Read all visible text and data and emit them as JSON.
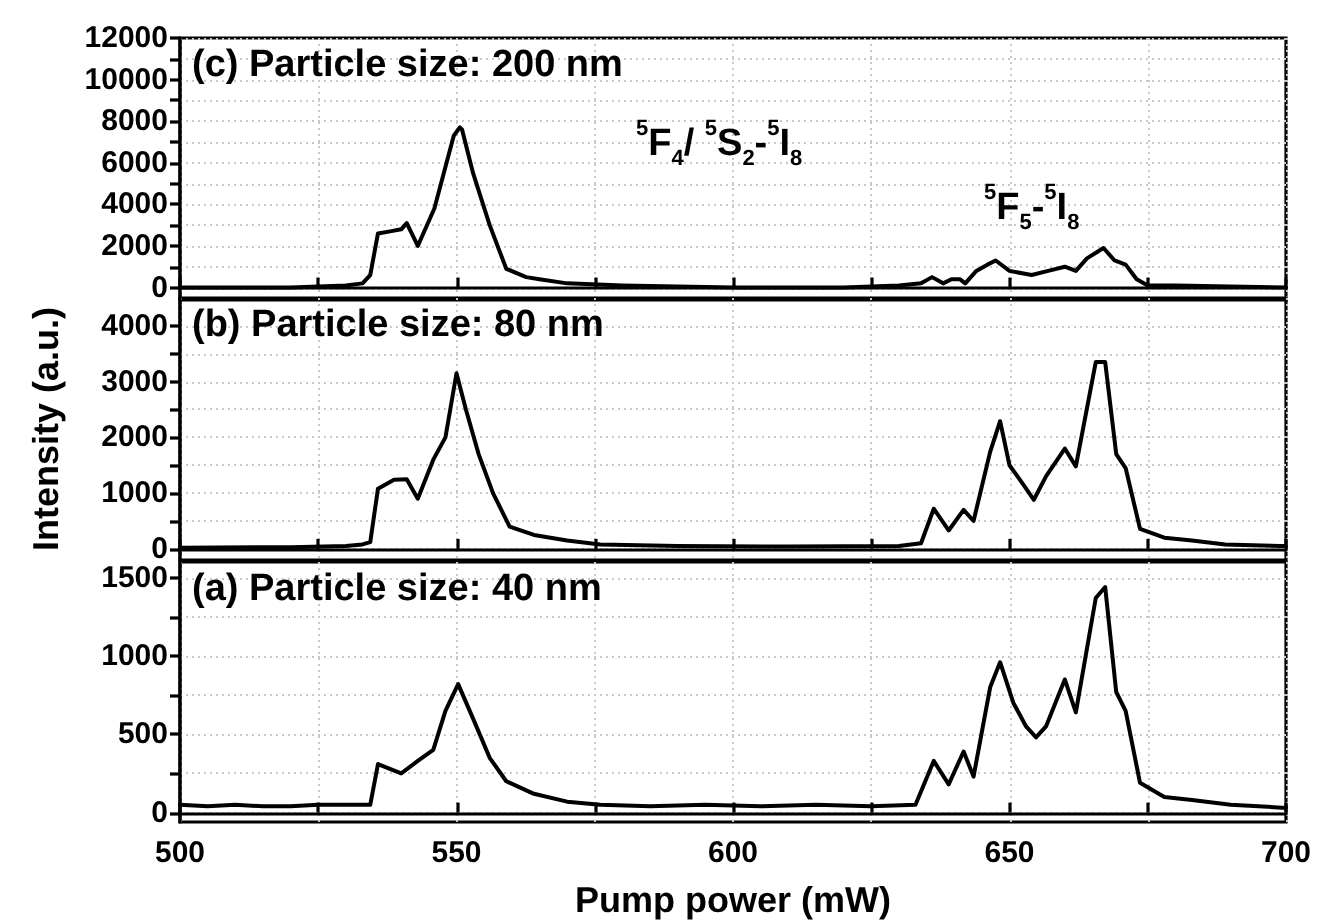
{
  "chart_data": [
    {
      "type": "line",
      "annotations": [
        "(c) Particle size: 200 nm",
        "$^{5}$F$_{4}$/ $^{5}$S$_{2}$-$^{5}$I$_{8}$",
        "$^{5}$F$_{5}$-$^{5}$I$_{8}$"
      ],
      "x": [
        500,
        520,
        530,
        533,
        534.4,
        535.8,
        538,
        540,
        541,
        543,
        546,
        549.5,
        550.6,
        551,
        553,
        556,
        559,
        562.6,
        565,
        570,
        580,
        600,
        620,
        630,
        634,
        636,
        638,
        639.5,
        641,
        642,
        644,
        646,
        647.5,
        650,
        654,
        657,
        660,
        662,
        664,
        667,
        669,
        671,
        673,
        675,
        680,
        700
      ],
      "series": [
        {
          "color": "#000000",
          "values": [
            0,
            0,
            100,
            200,
            600,
            2600,
            2700,
            2800,
            3100,
            2000,
            3800,
            7300,
            7700,
            7600,
            5500,
            3000,
            900,
            500,
            400,
            200,
            100,
            0,
            0,
            100,
            200,
            500,
            200,
            400,
            400,
            200,
            800,
            1100,
            1300,
            800,
            600,
            800,
            1000,
            800,
            1400,
            1900,
            1300,
            1100,
            400,
            100,
            100,
            0
          ]
        }
      ],
      "xlim": [
        500,
        700
      ],
      "xticks": [
        {
          "value": 500,
          "label": null
        },
        {
          "value": 525,
          "label": null
        },
        {
          "value": 550,
          "label": null
        },
        {
          "value": 575,
          "label": null
        },
        {
          "value": 600,
          "label": null
        },
        {
          "value": 625,
          "label": null
        },
        {
          "value": 650,
          "label": null
        },
        {
          "value": 675,
          "label": null
        },
        {
          "value": 700,
          "label": null
        }
      ],
      "ylim": [
        -600,
        12000
      ],
      "yticks": [
        0,
        {
          "value": 1000,
          "label": null
        },
        2000,
        {
          "value": 3000,
          "label": null
        },
        4000,
        {
          "value": 5000,
          "label": null
        },
        6000,
        {
          "value": 7000,
          "label": null
        },
        8000,
        {
          "value": 9000,
          "label": null
        },
        10000,
        {
          "value": 11000,
          "label": null
        },
        12000
      ],
      "grid": true,
      "tick_labels": "y"
    },
    {
      "type": "line",
      "ylabel": "Intensity (a.u.)",
      "annotations": [
        "(b) Particle size: 80 nm"
      ],
      "x": [
        500,
        520,
        530,
        533,
        534.4,
        535.8,
        538.7,
        541,
        543,
        545.8,
        548,
        550,
        551.7,
        554,
        556.6,
        559.6,
        564,
        570,
        576,
        590,
        610,
        630,
        634,
        636.3,
        639,
        641.7,
        643.5,
        646.5,
        648.3,
        650,
        652.6,
        654.4,
        656.6,
        660,
        662,
        665.6,
        667.3,
        669.3,
        671,
        673.6,
        678,
        683,
        689,
        699,
        700
      ],
      "series": [
        {
          "color": "#000000",
          "values": [
            20,
            30,
            50,
            80,
            120,
            1080,
            1240,
            1250,
            900,
            1600,
            2000,
            3150,
            2500,
            1700,
            1000,
            400,
            250,
            150,
            80,
            50,
            40,
            50,
            100,
            720,
            330,
            700,
            500,
            1740,
            2290,
            1500,
            1140,
            880,
            1300,
            1800,
            1480,
            3350,
            3350,
            1700,
            1450,
            360,
            200,
            150,
            80,
            50,
            50
          ]
        }
      ],
      "xlim": [
        500,
        700
      ],
      "xticks": [
        {
          "value": 500,
          "label": null
        },
        {
          "value": 525,
          "label": null
        },
        {
          "value": 550,
          "label": null
        },
        {
          "value": 575,
          "label": null
        },
        {
          "value": 600,
          "label": null
        },
        {
          "value": 625,
          "label": null
        },
        {
          "value": 650,
          "label": null
        },
        {
          "value": 675,
          "label": null
        },
        {
          "value": 700,
          "label": null
        }
      ],
      "ylim": [
        -200,
        4500
      ],
      "yticks": [
        0,
        {
          "value": 500,
          "label": null
        },
        1000,
        {
          "value": 1500,
          "label": null
        },
        2000,
        {
          "value": 2500,
          "label": null
        },
        3000,
        {
          "value": 3500,
          "label": null
        },
        4000
      ],
      "grid": true,
      "tick_labels": "y"
    },
    {
      "type": "line",
      "xlabel": "Pump power (mW)",
      "annotations": [
        "(a) Particle size: 40 nm"
      ],
      "x": [
        500,
        505,
        510,
        515,
        520,
        525,
        530,
        534.4,
        535.8,
        540,
        543,
        545.8,
        548,
        550.3,
        553,
        556,
        559,
        564,
        570,
        576,
        585,
        595,
        605,
        615,
        625,
        633,
        636.3,
        639,
        641.7,
        643.5,
        646.5,
        648.3,
        650.7,
        653,
        654.8,
        656.6,
        660,
        662,
        665.6,
        667.3,
        669.3,
        671,
        673.6,
        678,
        683,
        690,
        695,
        700
      ],
      "series": [
        {
          "color": "#000000",
          "values": [
            50,
            40,
            50,
            40,
            40,
            50,
            50,
            50,
            310,
            250,
            330,
            400,
            650,
            820,
            600,
            350,
            200,
            120,
            70,
            50,
            40,
            50,
            40,
            50,
            40,
            50,
            330,
            180,
            390,
            230,
            800,
            960,
            700,
            550,
            480,
            550,
            850,
            640,
            1370,
            1440,
            770,
            650,
            190,
            100,
            80,
            50,
            40,
            30
          ]
        }
      ],
      "xlim": [
        500,
        700
      ],
      "xticks": [
        500,
        {
          "value": 525,
          "label": null
        },
        550,
        {
          "value": 575,
          "label": null
        },
        600,
        {
          "value": 625,
          "label": null
        },
        650,
        {
          "value": 675,
          "label": null
        },
        700
      ],
      "ylim": [
        -60,
        1600
      ],
      "yticks": [
        0,
        {
          "value": 250,
          "label": null
        },
        500,
        {
          "value": 750,
          "label": null
        },
        1000,
        {
          "value": 1250,
          "label": null
        },
        1500
      ],
      "grid": true
    }
  ]
}
